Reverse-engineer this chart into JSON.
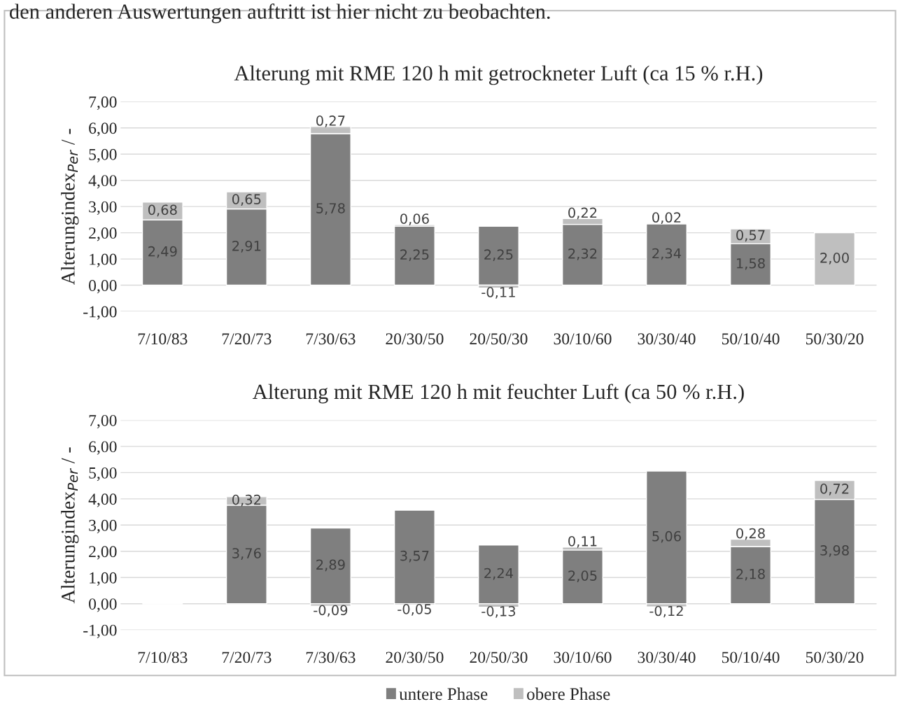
{
  "chart_data": [
    {
      "type": "bar",
      "stacked": true,
      "title": "Alterung mit RME 120 h mit getrockneter Luft (ca 15 % r.H.)",
      "ylabel": "Alterungindex$_{Per}$ / -",
      "annotations": [
        "den anderen Auswertungen auftritt ist hier nicht zu beobachten."
      ],
      "categories": [
        "7/10/83",
        "7/20/73",
        "7/30/63",
        "20/30/50",
        "20/50/30",
        "30/10/60",
        "30/30/40",
        "50/10/40",
        "50/30/20"
      ],
      "series": [
        {
          "color": "#7f7f7f",
          "values": [
            2.49,
            2.91,
            5.78,
            2.25,
            2.25,
            2.32,
            2.34,
            1.58,
            null
          ],
          "value_labels": [
            "2,49",
            "2,91",
            "5,78",
            "2,25",
            "2,25",
            "2,32",
            "2,34",
            "1,58",
            null
          ]
        },
        {
          "color": "#bfbfbf",
          "values": [
            0.68,
            0.65,
            0.27,
            0.06,
            -0.11,
            0.22,
            0.02,
            0.57,
            2.0
          ],
          "value_labels": [
            "0,68",
            "0,65",
            "0,27",
            "0,06",
            "-0,11",
            "0,22",
            "0,02",
            "0,57",
            "2,00"
          ]
        }
      ],
      "ylim": [
        -1,
        7
      ],
      "yticks": [
        {
          "value": -1,
          "label": "-1,00"
        },
        {
          "value": 0,
          "label": "0,00"
        },
        {
          "value": 1,
          "label": "1,00"
        },
        {
          "value": 2,
          "label": "2,00"
        },
        {
          "value": 3,
          "label": "3,00"
        },
        {
          "value": 4,
          "label": "4,00"
        },
        {
          "value": 5,
          "label": "5,00"
        },
        {
          "value": 6,
          "label": "6,00"
        },
        {
          "value": 7,
          "label": "7,00"
        }
      ],
      "grid": "y"
    },
    {
      "type": "bar",
      "stacked": true,
      "title": "Alterung mit RME 120 h mit feuchter Luft (ca 50 % r.H.)",
      "ylabel": "Alterungindex$_{Per}$ / -",
      "categories": [
        "7/10/83",
        "7/20/73",
        "7/30/63",
        "20/30/50",
        "20/50/30",
        "30/10/60",
        "30/30/40",
        "50/10/40",
        "50/30/20"
      ],
      "series": [
        {
          "name": "untere Phase",
          "color": "#7f7f7f",
          "values": [
            null,
            3.76,
            2.89,
            3.57,
            2.24,
            2.05,
            5.06,
            2.18,
            3.98
          ],
          "value_labels": [
            null,
            "3,76",
            "2,89",
            "3,57",
            "2,24",
            "2,05",
            "5,06",
            "2,18",
            "3,98"
          ]
        },
        {
          "name": "obere Phase",
          "color": "#bfbfbf",
          "values": [
            null,
            0.32,
            -0.09,
            -0.05,
            -0.13,
            0.11,
            -0.12,
            0.28,
            0.72
          ],
          "value_labels": [
            null,
            "0,32",
            "-0,09",
            "-0,05",
            "-0,13",
            "0,11",
            "-0,12",
            "0,28",
            "0,72"
          ]
        }
      ],
      "ylim": [
        -1,
        7
      ],
      "yticks": [
        {
          "value": -1,
          "label": "-1,00"
        },
        {
          "value": 0,
          "label": "0,00"
        },
        {
          "value": 1,
          "label": "1,00"
        },
        {
          "value": 2,
          "label": "2,00"
        },
        {
          "value": 3,
          "label": "3,00"
        },
        {
          "value": 4,
          "label": "4,00"
        },
        {
          "value": 5,
          "label": "5,00"
        },
        {
          "value": 6,
          "label": "6,00"
        },
        {
          "value": 7,
          "label": "7,00"
        }
      ],
      "grid": "y",
      "legend": "bottom"
    }
  ]
}
